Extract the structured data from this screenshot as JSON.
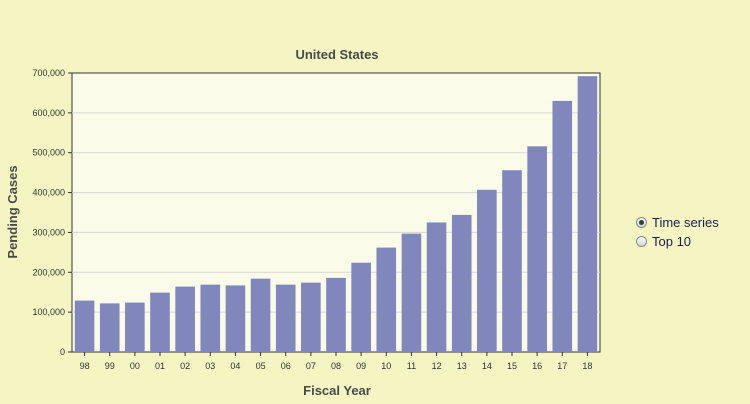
{
  "chart_data": {
    "type": "bar",
    "title": "United States",
    "xlabel": "Fiscal Year",
    "ylabel": "Pending Cases",
    "categories": [
      "98",
      "99",
      "00",
      "01",
      "02",
      "03",
      "04",
      "05",
      "06",
      "07",
      "08",
      "09",
      "10",
      "11",
      "12",
      "13",
      "14",
      "15",
      "16",
      "17",
      "18"
    ],
    "values": [
      129000,
      122000,
      124000,
      149000,
      164000,
      169000,
      167000,
      184000,
      169000,
      174000,
      186000,
      224000,
      262000,
      297000,
      325000,
      344000,
      407000,
      456000,
      516000,
      630000,
      692000
    ],
    "ylim": [
      0,
      700000
    ],
    "yticks": [
      0,
      100000,
      200000,
      300000,
      400000,
      500000,
      600000,
      700000
    ],
    "ytick_labels": [
      "0",
      "100,000",
      "200,000",
      "300,000",
      "400,000",
      "500,000",
      "600,000",
      "700,000"
    ],
    "grid": true,
    "bar_color": "#7f87bb",
    "plot_background": "#fbfbea"
  },
  "controls": {
    "options": [
      {
        "label": "Time series",
        "checked": true
      },
      {
        "label": "Top 10",
        "checked": false
      }
    ]
  }
}
